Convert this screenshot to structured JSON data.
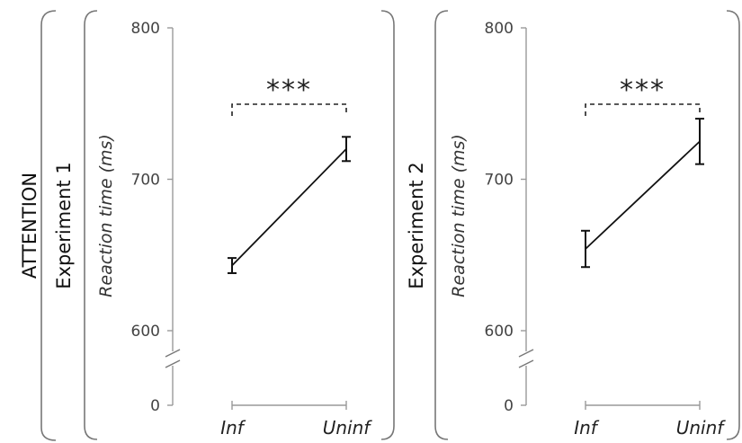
{
  "group_label": "ATTENTION",
  "chart_data": [
    {
      "type": "line",
      "experiment": "Experiment 1",
      "ylabel": "Reaction time (ms)",
      "categories": [
        "Inf",
        "Uninf"
      ],
      "values": [
        643,
        720
      ],
      "error": [
        5,
        8
      ],
      "ylim": [
        600,
        800
      ],
      "yticks": [
        "0",
        "600",
        "700",
        "800"
      ],
      "axis_break": true,
      "significance": "***",
      "grid": false
    },
    {
      "type": "line",
      "experiment": "Experiment 2",
      "ylabel": "Reaction time (ms)",
      "categories": [
        "Inf",
        "Uninf"
      ],
      "values": [
        654,
        725
      ],
      "error": [
        12,
        15
      ],
      "ylim": [
        600,
        800
      ],
      "yticks": [
        "0",
        "600",
        "700",
        "800"
      ],
      "axis_break": true,
      "significance": "***",
      "grid": false
    }
  ]
}
